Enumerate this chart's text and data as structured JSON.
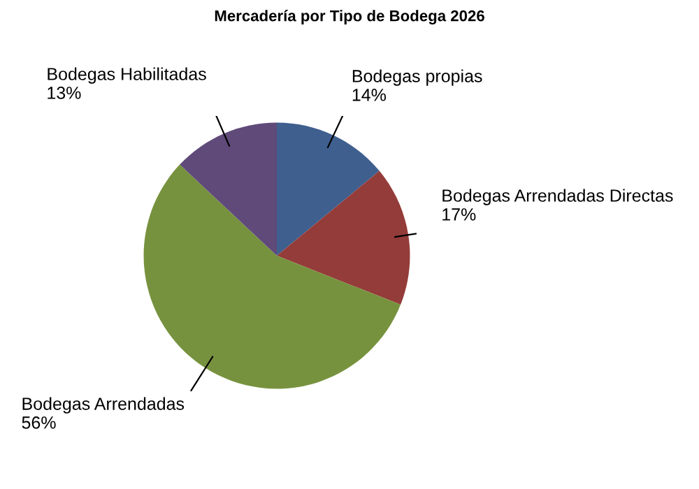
{
  "chart_data": {
    "type": "pie",
    "title": "Mercadería por Tipo de Bodega 2026",
    "categories": [
      "Bodegas propias",
      "Bodegas Arrendadas Directas",
      "Bodegas Arrendadas",
      "Bodegas Habilitadas"
    ],
    "values": [
      14,
      17,
      56,
      13
    ],
    "colors": [
      "#3f5f8f",
      "#943c39",
      "#77923e",
      "#5f4a7a"
    ],
    "value_labels": [
      "14%",
      "17%",
      "56%",
      "13%"
    ]
  }
}
